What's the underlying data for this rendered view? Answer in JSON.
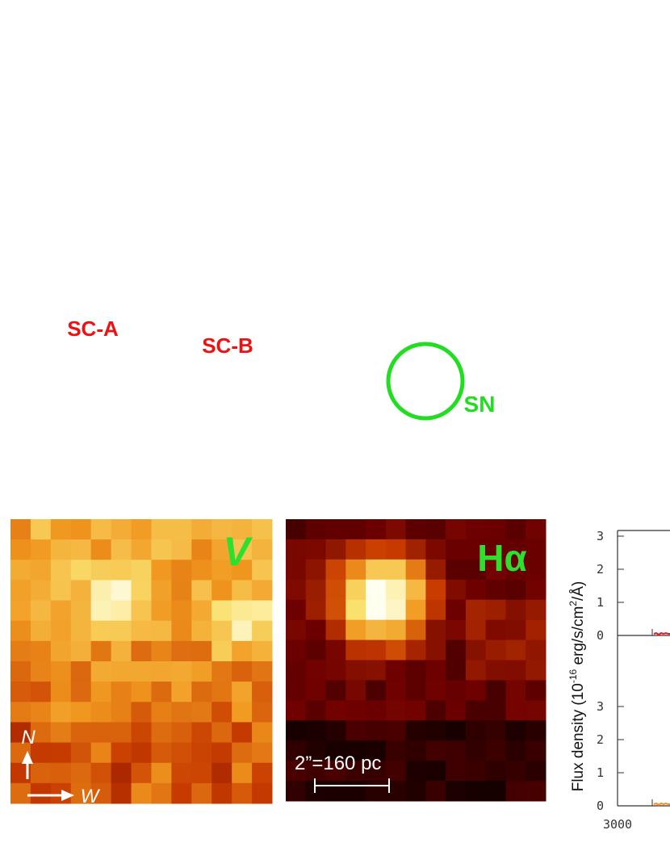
{
  "panels": [
    {
      "band": "V",
      "labels": [
        "SC-A",
        "SC-B"
      ],
      "compass": [
        "N",
        "W"
      ]
    },
    {
      "band": "Hα",
      "labels": [
        "SN"
      ],
      "scale_bar": "2”=160 pc"
    }
  ],
  "spectrum": {
    "y_label": [
      "Flux density (10",
      "-16",
      " erg/s/cm",
      "2",
      "/Å)"
    ],
    "top_yticks": [
      "0",
      "1",
      "2",
      "3"
    ],
    "bottom_yticks": [
      "0",
      "1",
      "2",
      "3"
    ],
    "xticks": [
      "3000"
    ]
  }
}
